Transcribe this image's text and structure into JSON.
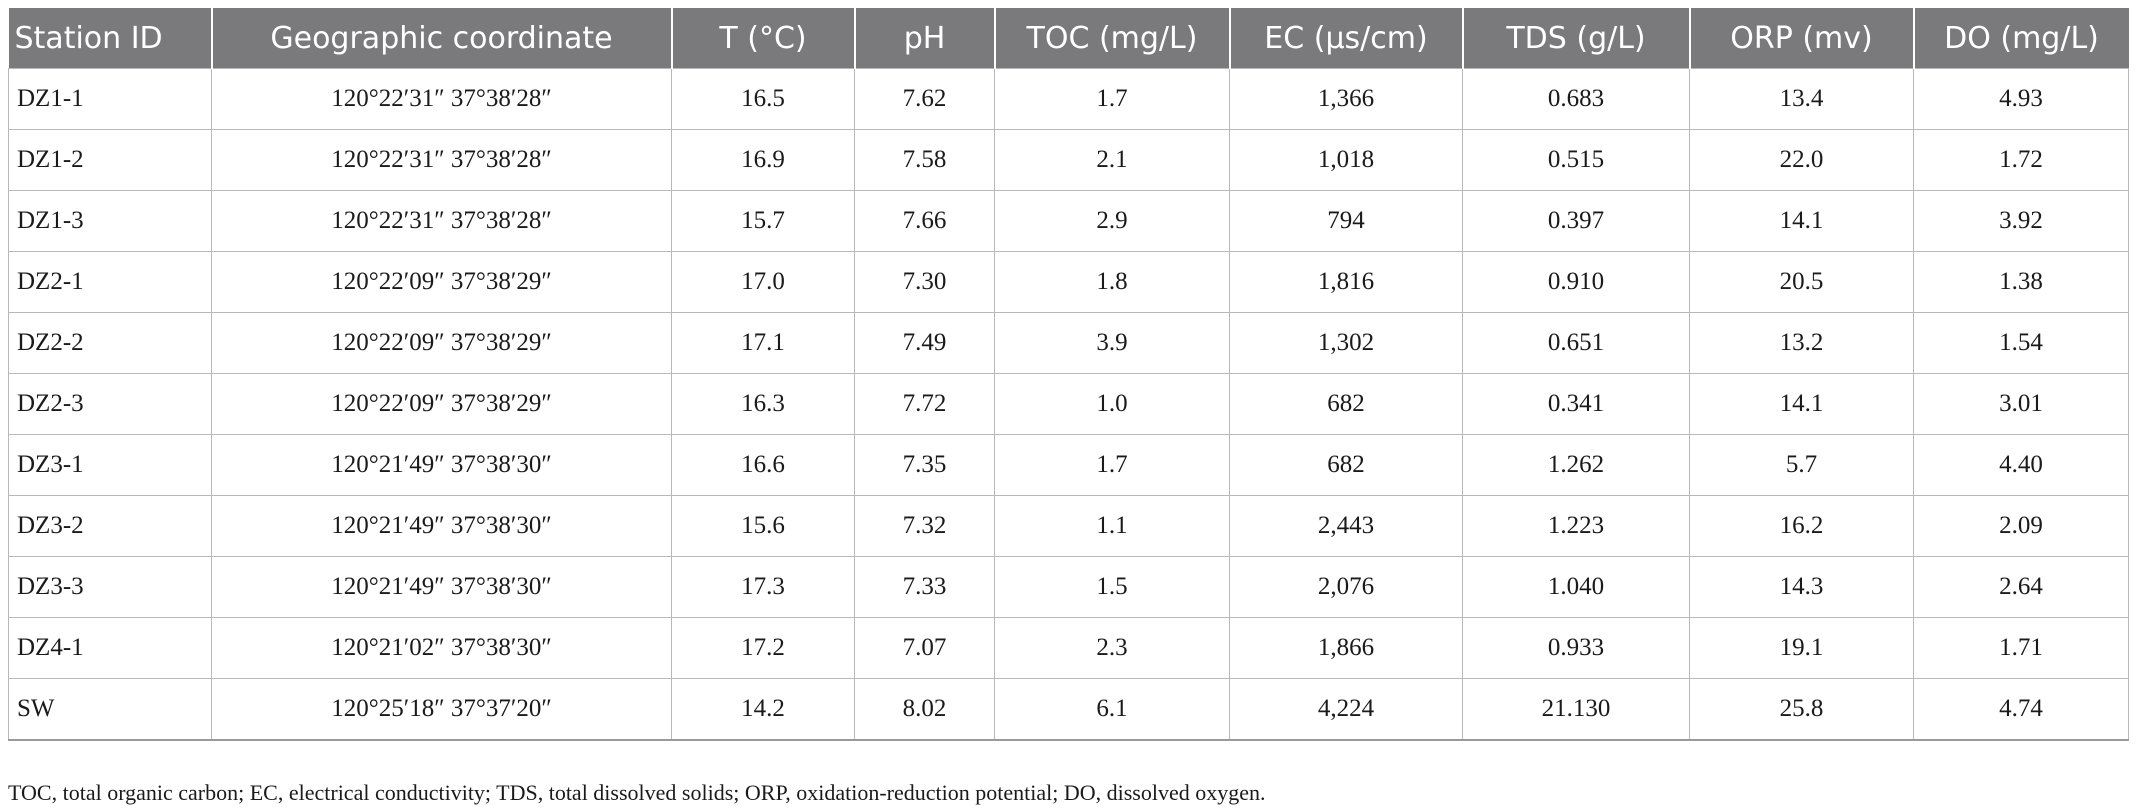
{
  "table": {
    "headers": [
      "Station ID",
      "Geographic coordinate",
      "T (°C)",
      "pH",
      "TOC (mg/L)",
      "EC (μs/cm)",
      "TDS (g/L)",
      "ORP (mv)",
      "DO (mg/L)"
    ],
    "rows": [
      [
        "DZ1-1",
        "120°22′31″ 37°38′28″",
        "16.5",
        "7.62",
        "1.7",
        "1,366",
        "0.683",
        "13.4",
        "4.93"
      ],
      [
        "DZ1-2",
        "120°22′31″ 37°38′28″",
        "16.9",
        "7.58",
        "2.1",
        "1,018",
        "0.515",
        "22.0",
        "1.72"
      ],
      [
        "DZ1-3",
        "120°22′31″ 37°38′28″",
        "15.7",
        "7.66",
        "2.9",
        "794",
        "0.397",
        "14.1",
        "3.92"
      ],
      [
        "DZ2-1",
        "120°22′09″ 37°38′29″",
        "17.0",
        "7.30",
        "1.8",
        "1,816",
        "0.910",
        "20.5",
        "1.38"
      ],
      [
        "DZ2-2",
        "120°22′09″ 37°38′29″",
        "17.1",
        "7.49",
        "3.9",
        "1,302",
        "0.651",
        "13.2",
        "1.54"
      ],
      [
        "DZ2-3",
        "120°22′09″ 37°38′29″",
        "16.3",
        "7.72",
        "1.0",
        "682",
        "0.341",
        "14.1",
        "3.01"
      ],
      [
        "DZ3-1",
        "120°21′49″ 37°38′30″",
        "16.6",
        "7.35",
        "1.7",
        "682",
        "1.262",
        "5.7",
        "4.40"
      ],
      [
        "DZ3-2",
        "120°21′49″ 37°38′30″",
        "15.6",
        "7.32",
        "1.1",
        "2,443",
        "1.223",
        "16.2",
        "2.09"
      ],
      [
        "DZ3-3",
        "120°21′49″ 37°38′30″",
        "17.3",
        "7.33",
        "1.5",
        "2,076",
        "1.040",
        "14.3",
        "2.64"
      ],
      [
        "DZ4-1",
        "120°21′02″ 37°38′30″",
        "17.2",
        "7.07",
        "2.3",
        "1,866",
        "0.933",
        "19.1",
        "1.71"
      ],
      [
        "SW",
        "120°25′18″ 37°37′20″",
        "14.2",
        "8.02",
        "6.1",
        "4,224",
        "21.130",
        "25.8",
        "4.74"
      ]
    ]
  },
  "footnote": "TOC, total organic carbon; EC, electrical conductivity; TDS, total dissolved solids; ORP, oxidation-reduction potential; DO, dissolved oxygen.",
  "colors": {
    "header_bg": "#7a7a7c",
    "header_text": "#ffffff",
    "grid": "#b8b8b8"
  }
}
